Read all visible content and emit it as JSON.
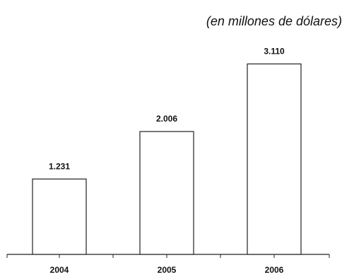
{
  "chart_data": {
    "type": "bar",
    "subtitle": "(en millones de dólares)",
    "categories": [
      "2004",
      "2005",
      "2006"
    ],
    "values": [
      1231,
      2006,
      3110
    ],
    "value_labels": [
      "1.231",
      "2.006",
      "3.110"
    ],
    "ylim": [
      0,
      3300
    ],
    "grid": false,
    "legend": "none",
    "colors": {
      "bar_fill": "#ffffff",
      "bar_stroke": "#222222",
      "axis": "#222222",
      "text": "#111111"
    }
  }
}
